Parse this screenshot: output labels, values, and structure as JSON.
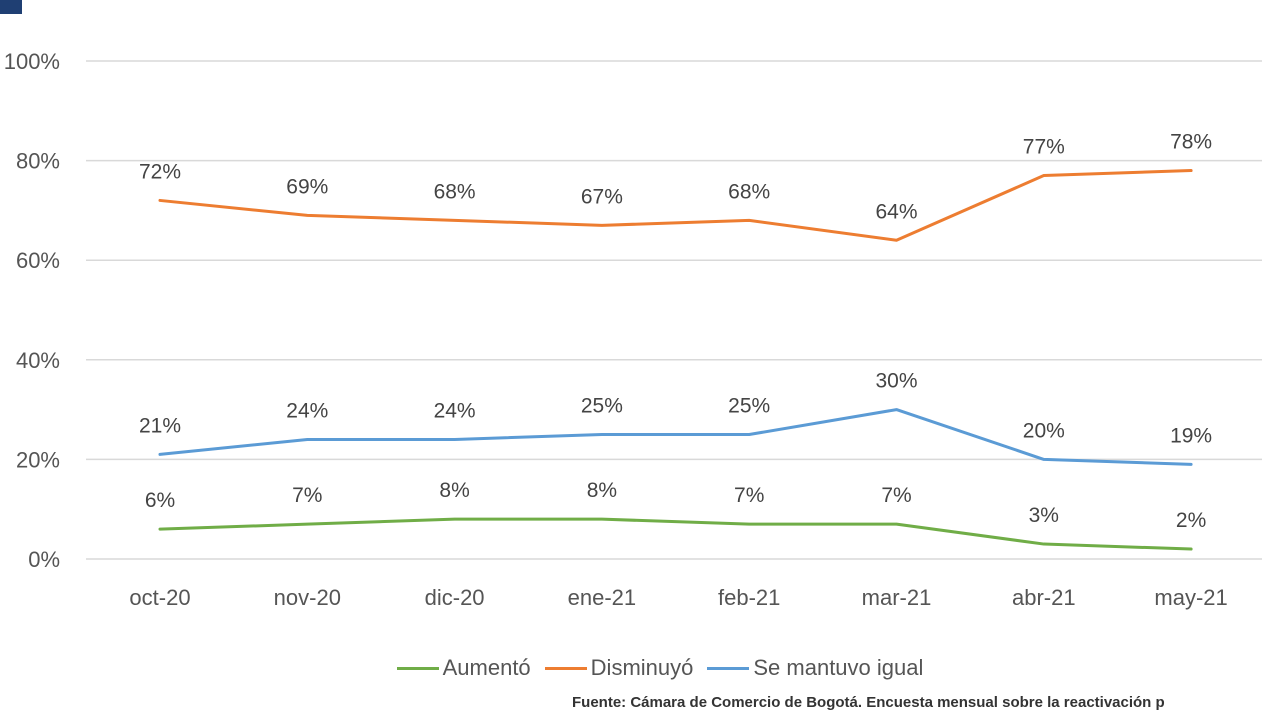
{
  "chart_data": {
    "type": "line",
    "categories": [
      "oct-20",
      "nov-20",
      "dic-20",
      "ene-21",
      "feb-21",
      "mar-21",
      "abr-21",
      "may-21"
    ],
    "series": [
      {
        "name": "Disminuyó",
        "color": "#ed7d31",
        "values": [
          72,
          69,
          68,
          67,
          68,
          64,
          77,
          78
        ],
        "labels": [
          "72%",
          "69%",
          "68%",
          "67%",
          "68%",
          "64%",
          "77%",
          "78%"
        ]
      },
      {
        "name": "Se mantuvo igual",
        "color": "#5b9bd5",
        "values": [
          21,
          24,
          24,
          25,
          25,
          30,
          20,
          19
        ],
        "labels": [
          "21%",
          "24%",
          "24%",
          "25%",
          "25%",
          "30%",
          "20%",
          "19%"
        ]
      },
      {
        "name": "Aumentó",
        "color": "#70ad47",
        "values": [
          6,
          7,
          8,
          8,
          7,
          7,
          3,
          2
        ],
        "labels": [
          "6%",
          "7%",
          "8%",
          "8%",
          "7%",
          "7%",
          "3%",
          "2%"
        ]
      }
    ],
    "ylim": [
      0,
      100
    ],
    "yticks": [
      "0%",
      "20%",
      "40%",
      "60%",
      "80%",
      "100%"
    ],
    "grid": true,
    "legend": "bottom",
    "legend_entries": [
      {
        "name": "Aumentó",
        "color": "#70ad47"
      },
      {
        "name": "Disminuyó",
        "color": "#ed7d31"
      },
      {
        "name": "Se mantuvo igual",
        "color": "#5b9bd5"
      }
    ]
  },
  "source_note": "Fuente: Cámara de Comercio de Bogotá. Encuesta mensual sobre la reactivación p"
}
